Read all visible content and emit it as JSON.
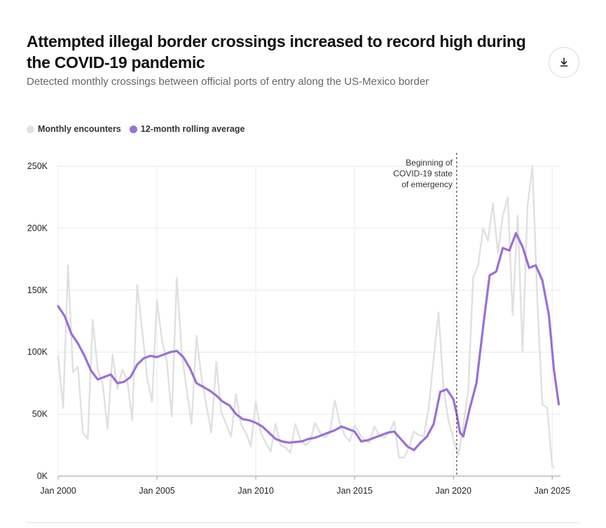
{
  "header": {
    "title": "Attempted illegal border crossings increased to record high during the COVID-19 pandemic",
    "subtitle": "Detected monthly crossings between official ports of entry along the US-Mexico border",
    "download_icon": "download-icon"
  },
  "legend": [
    {
      "label": "Monthly encounters",
      "color": "#e0e0e0"
    },
    {
      "label": "12-month rolling average",
      "color": "#9b6fd6"
    }
  ],
  "chart_data": {
    "type": "line",
    "title": "Attempted illegal border crossings increased to record high during the COVID-19 pandemic",
    "subtitle": "Detected monthly crossings between official ports of entry along the US-Mexico border",
    "xlabel": "",
    "ylabel": "",
    "xlim": [
      "2000-01",
      "2025-06"
    ],
    "ylim": [
      0,
      250000
    ],
    "grid": true,
    "legend_position": "top-left",
    "x_ticks": [
      {
        "value": 2000,
        "label": "Jan 2000"
      },
      {
        "value": 2005,
        "label": "Jan 2005"
      },
      {
        "value": 2010,
        "label": "Jan 2010"
      },
      {
        "value": 2015,
        "label": "Jan 2015"
      },
      {
        "value": 2020,
        "label": "Jan 2020"
      },
      {
        "value": 2025,
        "label": "Jan 2025"
      }
    ],
    "y_ticks": [
      {
        "value": 0,
        "label": "0K"
      },
      {
        "value": 50000,
        "label": "50K"
      },
      {
        "value": 100000,
        "label": "100K"
      },
      {
        "value": 150000,
        "label": "150K"
      },
      {
        "value": 200000,
        "label": "200K"
      },
      {
        "value": 250000,
        "label": "250K"
      }
    ],
    "annotation": {
      "x": "2020-03",
      "lines": [
        "Beginning of",
        "COVID-19 state",
        "of emergency"
      ]
    },
    "series": [
      {
        "name": "Monthly encounters",
        "color": "#e0e0e0",
        "points": [
          [
            "2000-01",
            97000
          ],
          [
            "2000-04",
            55000
          ],
          [
            "2000-07",
            170000
          ],
          [
            "2000-10",
            84000
          ],
          [
            "2001-01",
            88000
          ],
          [
            "2001-04",
            35000
          ],
          [
            "2001-07",
            30000
          ],
          [
            "2001-10",
            126000
          ],
          [
            "2002-01",
            86000
          ],
          [
            "2002-04",
            75000
          ],
          [
            "2002-07",
            38000
          ],
          [
            "2002-10",
            98000
          ],
          [
            "2003-01",
            70000
          ],
          [
            "2003-04",
            86000
          ],
          [
            "2003-07",
            77000
          ],
          [
            "2003-10",
            45000
          ],
          [
            "2004-01",
            154000
          ],
          [
            "2004-04",
            118000
          ],
          [
            "2004-07",
            80000
          ],
          [
            "2004-10",
            60000
          ],
          [
            "2005-01",
            142000
          ],
          [
            "2005-04",
            110000
          ],
          [
            "2005-07",
            92000
          ],
          [
            "2005-10",
            48000
          ],
          [
            "2006-01",
            160000
          ],
          [
            "2006-04",
            100000
          ],
          [
            "2006-07",
            70000
          ],
          [
            "2006-10",
            42000
          ],
          [
            "2007-01",
            113000
          ],
          [
            "2007-04",
            80000
          ],
          [
            "2007-07",
            57000
          ],
          [
            "2007-10",
            35000
          ],
          [
            "2008-01",
            92000
          ],
          [
            "2008-04",
            52000
          ],
          [
            "2008-07",
            42000
          ],
          [
            "2008-10",
            32000
          ],
          [
            "2009-01",
            66000
          ],
          [
            "2009-04",
            42000
          ],
          [
            "2009-07",
            35000
          ],
          [
            "2009-10",
            24000
          ],
          [
            "2010-01",
            60000
          ],
          [
            "2010-04",
            35000
          ],
          [
            "2010-07",
            27000
          ],
          [
            "2010-10",
            20000
          ],
          [
            "2011-01",
            42000
          ],
          [
            "2011-04",
            25000
          ],
          [
            "2011-07",
            23000
          ],
          [
            "2011-10",
            19000
          ],
          [
            "2012-01",
            42000
          ],
          [
            "2012-04",
            30000
          ],
          [
            "2012-07",
            25000
          ],
          [
            "2012-10",
            28000
          ],
          [
            "2013-01",
            43000
          ],
          [
            "2013-04",
            35000
          ],
          [
            "2013-07",
            31000
          ],
          [
            "2013-10",
            35000
          ],
          [
            "2014-01",
            61000
          ],
          [
            "2014-04",
            43000
          ],
          [
            "2014-07",
            33000
          ],
          [
            "2014-10",
            28000
          ],
          [
            "2015-01",
            41000
          ],
          [
            "2015-04",
            34000
          ],
          [
            "2015-07",
            29000
          ],
          [
            "2015-10",
            27000
          ],
          [
            "2016-01",
            40000
          ],
          [
            "2016-04",
            33000
          ],
          [
            "2016-07",
            31000
          ],
          [
            "2016-10",
            35000
          ],
          [
            "2017-01",
            44000
          ],
          [
            "2017-04",
            15000
          ],
          [
            "2017-07",
            15000
          ],
          [
            "2017-10",
            23000
          ],
          [
            "2018-01",
            36000
          ],
          [
            "2018-04",
            33000
          ],
          [
            "2018-07",
            32000
          ],
          [
            "2018-10",
            55000
          ],
          [
            "2019-01",
            95000
          ],
          [
            "2019-04",
            132000
          ],
          [
            "2019-07",
            70000
          ],
          [
            "2019-10",
            45000
          ],
          [
            "2020-01",
            30000
          ],
          [
            "2020-04",
            17000
          ],
          [
            "2020-07",
            40000
          ],
          [
            "2020-10",
            70000
          ],
          [
            "2021-01",
            160000
          ],
          [
            "2021-04",
            170000
          ],
          [
            "2021-07",
            200000
          ],
          [
            "2021-10",
            190000
          ],
          [
            "2022-01",
            220000
          ],
          [
            "2022-04",
            180000
          ],
          [
            "2022-07",
            210000
          ],
          [
            "2022-10",
            225000
          ],
          [
            "2023-01",
            130000
          ],
          [
            "2023-04",
            210000
          ],
          [
            "2023-07",
            100000
          ],
          [
            "2023-10",
            218000
          ],
          [
            "2024-01",
            250000
          ],
          [
            "2024-04",
            140000
          ],
          [
            "2024-07",
            58000
          ],
          [
            "2024-10",
            55000
          ],
          [
            "2025-01",
            8000
          ],
          [
            "2025-02",
            7000
          ]
        ]
      },
      {
        "name": "12-month rolling average",
        "color": "#9b6fd6",
        "points": [
          [
            "2000-01",
            137000
          ],
          [
            "2000-05",
            129000
          ],
          [
            "2000-09",
            115000
          ],
          [
            "2001-01",
            107000
          ],
          [
            "2001-05",
            97000
          ],
          [
            "2001-09",
            85000
          ],
          [
            "2002-01",
            78000
          ],
          [
            "2002-05",
            80000
          ],
          [
            "2002-09",
            82000
          ],
          [
            "2003-01",
            75000
          ],
          [
            "2003-05",
            76000
          ],
          [
            "2003-09",
            80000
          ],
          [
            "2004-01",
            90000
          ],
          [
            "2004-05",
            95000
          ],
          [
            "2004-09",
            97000
          ],
          [
            "2005-01",
            96000
          ],
          [
            "2005-05",
            98000
          ],
          [
            "2005-09",
            100000
          ],
          [
            "2006-01",
            101000
          ],
          [
            "2006-05",
            96000
          ],
          [
            "2006-09",
            87000
          ],
          [
            "2007-01",
            75000
          ],
          [
            "2007-05",
            72000
          ],
          [
            "2007-09",
            69000
          ],
          [
            "2008-01",
            65000
          ],
          [
            "2008-05",
            60000
          ],
          [
            "2008-09",
            57000
          ],
          [
            "2009-01",
            50000
          ],
          [
            "2009-05",
            46000
          ],
          [
            "2009-09",
            45000
          ],
          [
            "2010-01",
            43000
          ],
          [
            "2010-05",
            40000
          ],
          [
            "2010-09",
            35000
          ],
          [
            "2011-01",
            30000
          ],
          [
            "2011-05",
            28000
          ],
          [
            "2011-09",
            27000
          ],
          [
            "2012-01",
            27500
          ],
          [
            "2012-05",
            28000
          ],
          [
            "2012-09",
            30000
          ],
          [
            "2013-01",
            31000
          ],
          [
            "2013-05",
            33000
          ],
          [
            "2013-09",
            35000
          ],
          [
            "2014-01",
            37000
          ],
          [
            "2014-05",
            40000
          ],
          [
            "2014-09",
            38000
          ],
          [
            "2015-01",
            36000
          ],
          [
            "2015-05",
            28000
          ],
          [
            "2015-09",
            29000
          ],
          [
            "2016-01",
            31000
          ],
          [
            "2016-05",
            33000
          ],
          [
            "2016-09",
            35000
          ],
          [
            "2017-01",
            36000
          ],
          [
            "2017-05",
            30000
          ],
          [
            "2017-09",
            24000
          ],
          [
            "2018-01",
            21000
          ],
          [
            "2018-05",
            27000
          ],
          [
            "2018-09",
            32000
          ],
          [
            "2019-01",
            42000
          ],
          [
            "2019-05",
            68000
          ],
          [
            "2019-09",
            70000
          ],
          [
            "2020-01",
            62000
          ],
          [
            "2020-03",
            50000
          ],
          [
            "2020-05",
            35000
          ],
          [
            "2020-07",
            32000
          ],
          [
            "2020-11",
            55000
          ],
          [
            "2021-03",
            75000
          ],
          [
            "2021-07",
            120000
          ],
          [
            "2021-11",
            162000
          ],
          [
            "2022-03",
            165000
          ],
          [
            "2022-07",
            184000
          ],
          [
            "2022-11",
            182000
          ],
          [
            "2023-03",
            196000
          ],
          [
            "2023-07",
            185000
          ],
          [
            "2023-11",
            168000
          ],
          [
            "2024-03",
            170000
          ],
          [
            "2024-07",
            158000
          ],
          [
            "2024-11",
            130000
          ],
          [
            "2025-02",
            86000
          ],
          [
            "2025-05",
            58000
          ]
        ]
      }
    ]
  }
}
